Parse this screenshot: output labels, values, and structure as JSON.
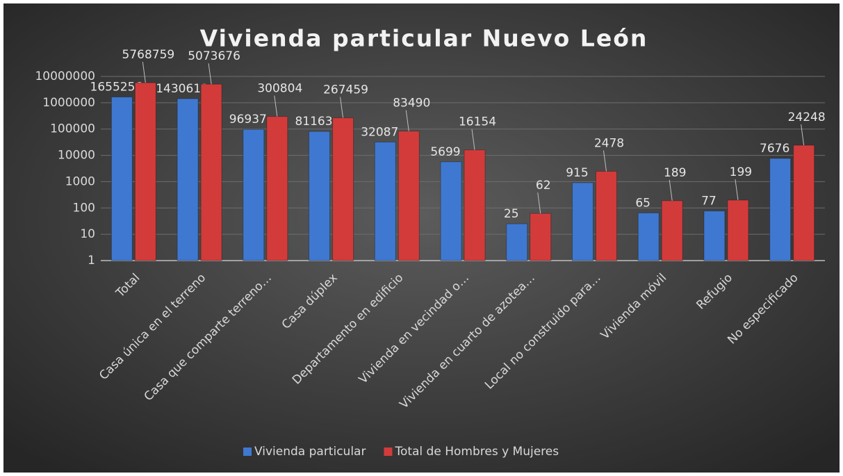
{
  "chart_data": {
    "type": "bar",
    "title": "Vivienda particular Nuevo León",
    "categories": [
      "Total",
      "Casa única en el terreno",
      "Casa que comparte terreno…",
      "Casa dúplex",
      "Departamento en edificio",
      "Vivienda en vecindad o…",
      "Vivienda en cuarto de azotea…",
      "Local no construido para…",
      "Vivienda móvil",
      "Refugio",
      "No especificado"
    ],
    "series": [
      {
        "name": "Vivienda particular",
        "color": "#3f78d0",
        "values": [
          1655256,
          1430612,
          96937,
          81163,
          32087,
          5699,
          25,
          915,
          65,
          77,
          7676
        ]
      },
      {
        "name": "Total de Hombres y Mujeres",
        "color": "#d33b3b",
        "values": [
          5768759,
          5073676,
          300804,
          267459,
          83490,
          16154,
          62,
          2478,
          189,
          199,
          24248
        ]
      }
    ],
    "log_scale": true,
    "ylim": [
      1,
      10000000
    ],
    "yticks": [
      1,
      10,
      100,
      1000,
      10000,
      100000,
      1000000,
      10000000
    ],
    "grid": true,
    "legend": "bottom"
  }
}
